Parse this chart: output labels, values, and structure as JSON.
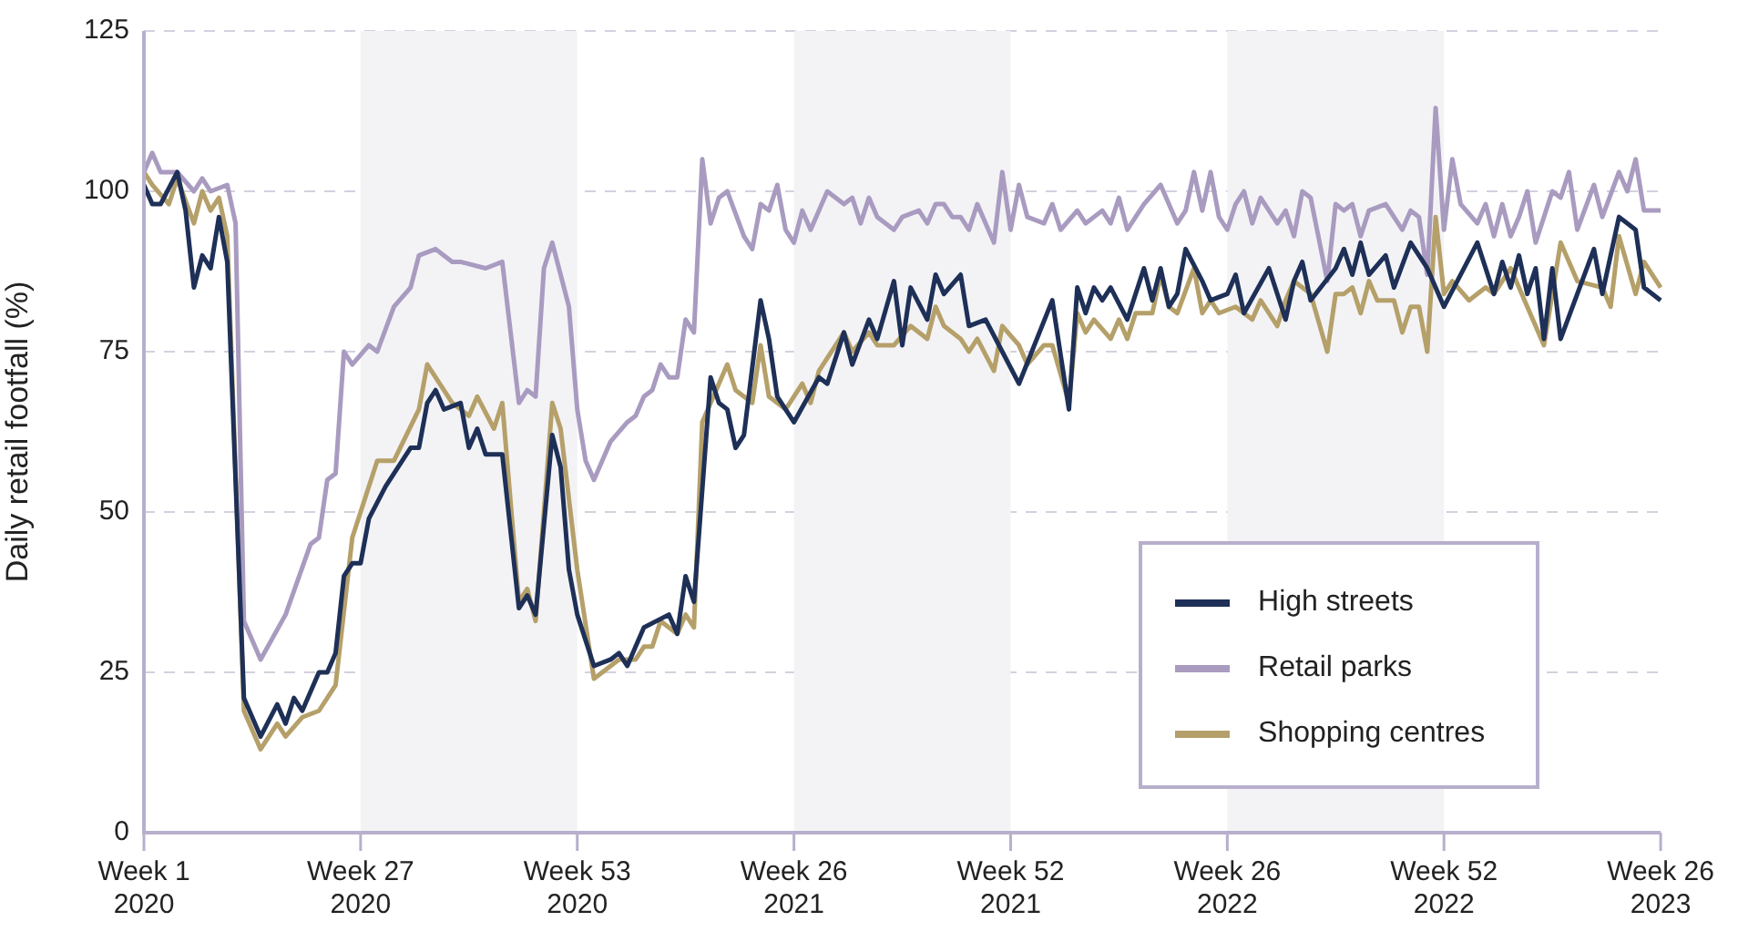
{
  "chart_data": {
    "type": "line",
    "ylabel": "Daily retail footfall (%)",
    "categories": [
      "Week 1 2020",
      null,
      null,
      null,
      null,
      null,
      null,
      null,
      null,
      null,
      null,
      null,
      null,
      null,
      null,
      null,
      null,
      null,
      null,
      null,
      null,
      null,
      null,
      null,
      null,
      null,
      "Week 27 2020",
      null,
      null,
      null,
      null,
      null,
      null,
      null,
      null,
      null,
      null,
      null,
      null,
      null,
      null,
      null,
      null,
      null,
      null,
      null,
      null,
      null,
      null,
      null,
      null,
      null,
      "Week 53 2020",
      null,
      null,
      null,
      null,
      null,
      null,
      null,
      null,
      null,
      null,
      null,
      null,
      null,
      null,
      null,
      null,
      null,
      null,
      null,
      null,
      null,
      null,
      null,
      null,
      null,
      "Week 26 2021",
      null,
      null,
      null,
      null,
      null,
      null,
      null,
      null,
      null,
      null,
      null,
      null,
      null,
      null,
      null,
      null,
      null,
      null,
      null,
      null,
      null,
      null,
      null,
      null,
      null,
      "Week 52 2021",
      null,
      null,
      null,
      null,
      null,
      null,
      null,
      null,
      null,
      null,
      null,
      null,
      null,
      null,
      null,
      null,
      null,
      null,
      null,
      null,
      null,
      null,
      null,
      null,
      null,
      "Week 26 2022",
      null,
      null,
      null,
      null,
      null,
      null,
      null,
      null,
      null,
      null,
      null,
      null,
      null,
      null,
      null,
      null,
      null,
      null,
      null,
      null,
      null,
      null,
      null,
      null,
      null,
      "Week 52 2022",
      null,
      null,
      null,
      null,
      null,
      null,
      null,
      null,
      null,
      null,
      null,
      null,
      null,
      null,
      null,
      null,
      null,
      null,
      null,
      null,
      null,
      null,
      null,
      null,
      null,
      "Week 26 2023"
    ],
    "ylim": [
      0,
      125
    ],
    "yticks": [
      0,
      25,
      50,
      75,
      100,
      125
    ],
    "grid": "y",
    "legend": "bottom right",
    "line_style": "solid",
    "bands": [
      {
        "axis": "x",
        "from": "Week 27 2020",
        "to": "Week 53 2020",
        "color": "#f3f3f6"
      },
      {
        "axis": "x",
        "from": "Week 26 2021",
        "to": "Week 52 2021",
        "color": "#f3f3f6"
      },
      {
        "axis": "x",
        "from": "Week 26 2022",
        "to": "Week 52 2022",
        "color": "#f3f3f6"
      }
    ],
    "series": [
      {
        "name": "High streets",
        "color": "#1e3057",
        "values": [
          101,
          98,
          98,
          null,
          103,
          97,
          85,
          90,
          88,
          96,
          89,
          null,
          21,
          null,
          15,
          null,
          20,
          17,
          21,
          19,
          null,
          25,
          25,
          28,
          40,
          42,
          42,
          49,
          null,
          54,
          null,
          null,
          60,
          60,
          67,
          69,
          66,
          null,
          67,
          60,
          63,
          59,
          null,
          59,
          null,
          35,
          37,
          34,
          null,
          62,
          57,
          41,
          34,
          null,
          26,
          null,
          27,
          28,
          26,
          29,
          32,
          null,
          null,
          34,
          31,
          40,
          36,
          null,
          71,
          67,
          66,
          60,
          62,
          null,
          83,
          77,
          68,
          null,
          64,
          null,
          null,
          71,
          70,
          null,
          78,
          73,
          null,
          80,
          77,
          null,
          86,
          76,
          85,
          null,
          80,
          87,
          84,
          null,
          87,
          79,
          null,
          80,
          null,
          75,
          null,
          70,
          null,
          null,
          null,
          83,
          null,
          66,
          85,
          81,
          85,
          83,
          85,
          null,
          80,
          84,
          88,
          83,
          88,
          82,
          84,
          91,
          null,
          86,
          83,
          null,
          84,
          87,
          81,
          null,
          null,
          88,
          null,
          80,
          86,
          89,
          83,
          null,
          null,
          88,
          91,
          87,
          92,
          87,
          null,
          90,
          85,
          null,
          92,
          null,
          88,
          null,
          82,
          null,
          null,
          null,
          92,
          null,
          84,
          89,
          85,
          90,
          84,
          88,
          77,
          88,
          77,
          null,
          null,
          null,
          91,
          84,
          null,
          96,
          null,
          94,
          85,
          null,
          83
        ]
      },
      {
        "name": "Retail parks",
        "color": "#a99bc0",
        "values": [
          103,
          106,
          103,
          null,
          103,
          null,
          100,
          102,
          100,
          null,
          101,
          95,
          33,
          null,
          27,
          null,
          null,
          34,
          null,
          null,
          45,
          46,
          55,
          56,
          75,
          73,
          null,
          76,
          75,
          null,
          82,
          null,
          85,
          90,
          null,
          91,
          90,
          89,
          89,
          null,
          null,
          88,
          null,
          89,
          null,
          67,
          69,
          68,
          88,
          92,
          null,
          82,
          66,
          58,
          55,
          null,
          61,
          null,
          64,
          65,
          68,
          69,
          73,
          71,
          71,
          80,
          78,
          105,
          95,
          99,
          100,
          null,
          93,
          91,
          98,
          97,
          101,
          94,
          92,
          97,
          94,
          null,
          100,
          null,
          98,
          99,
          95,
          99,
          96,
          null,
          94,
          96,
          null,
          97,
          95,
          98,
          98,
          96,
          96,
          94,
          98,
          null,
          92,
          103,
          94,
          101,
          96,
          null,
          95,
          98,
          94,
          null,
          97,
          95,
          null,
          97,
          95,
          99,
          94,
          96,
          98,
          null,
          101,
          null,
          95,
          97,
          103,
          97,
          103,
          96,
          94,
          98,
          100,
          95,
          99,
          null,
          95,
          97,
          93,
          100,
          99,
          null,
          86,
          98,
          97,
          98,
          93,
          97,
          null,
          98,
          96,
          94,
          97,
          96,
          87,
          113,
          94,
          105,
          98,
          null,
          95,
          98,
          93,
          98,
          93,
          96,
          100,
          92,
          null,
          100,
          99,
          103,
          94,
          null,
          101,
          96,
          null,
          103,
          100,
          105,
          97,
          null,
          97
        ]
      },
      {
        "name": "Shopping centres",
        "color": "#b5a06a",
        "values": [
          103,
          101,
          null,
          98,
          102,
          null,
          95,
          100,
          97,
          99,
          93,
          null,
          19,
          null,
          13,
          null,
          17,
          15,
          null,
          18,
          null,
          19,
          null,
          23,
          null,
          46,
          null,
          null,
          58,
          null,
          58,
          null,
          null,
          66,
          73,
          null,
          null,
          67,
          null,
          65,
          68,
          null,
          63,
          67,
          null,
          36,
          38,
          33,
          null,
          67,
          63,
          null,
          41,
          null,
          24,
          null,
          null,
          27,
          null,
          27,
          29,
          29,
          33,
          null,
          31,
          34,
          32,
          64,
          null,
          null,
          73,
          69,
          null,
          67,
          76,
          68,
          null,
          66,
          null,
          70,
          67,
          72,
          null,
          null,
          78,
          75,
          null,
          78,
          76,
          null,
          76,
          null,
          79,
          null,
          77,
          82,
          79,
          null,
          77,
          75,
          77,
          null,
          72,
          79,
          null,
          76,
          73,
          null,
          76,
          76,
          null,
          67,
          81,
          78,
          80,
          null,
          77,
          80,
          77,
          81,
          null,
          81,
          87,
          82,
          81,
          null,
          88,
          81,
          83,
          81,
          null,
          82,
          null,
          80,
          83,
          null,
          79,
          83,
          86,
          null,
          84,
          null,
          75,
          84,
          84,
          85,
          81,
          86,
          83,
          null,
          83,
          78,
          82,
          82,
          75,
          96,
          84,
          86,
          null,
          83,
          null,
          85,
          84,
          null,
          88,
          85,
          82,
          null,
          76,
          84,
          92,
          null,
          86,
          null,
          null,
          85,
          82,
          93,
          null,
          84,
          89,
          null,
          85
        ]
      }
    ]
  }
}
